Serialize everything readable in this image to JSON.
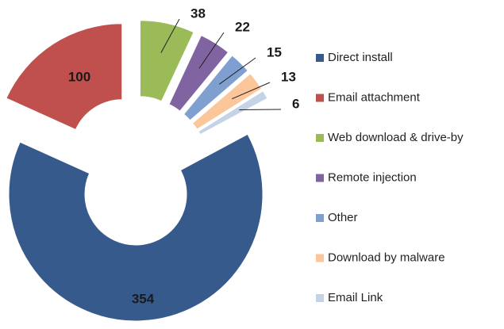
{
  "chart_data": {
    "type": "donut",
    "categories": [
      "Direct install",
      "Email attachment",
      "Web download & drive-by",
      "Remote injection",
      "Other",
      "Download by malware",
      "Email Link"
    ],
    "values": [
      354,
      100,
      38,
      22,
      15,
      13,
      6
    ],
    "colors": [
      "#375a8c",
      "#c0504d",
      "#9bbb59",
      "#8064a2",
      "#7f9fd0",
      "#fac69a",
      "#c5d3e6"
    ],
    "legend": "right"
  }
}
